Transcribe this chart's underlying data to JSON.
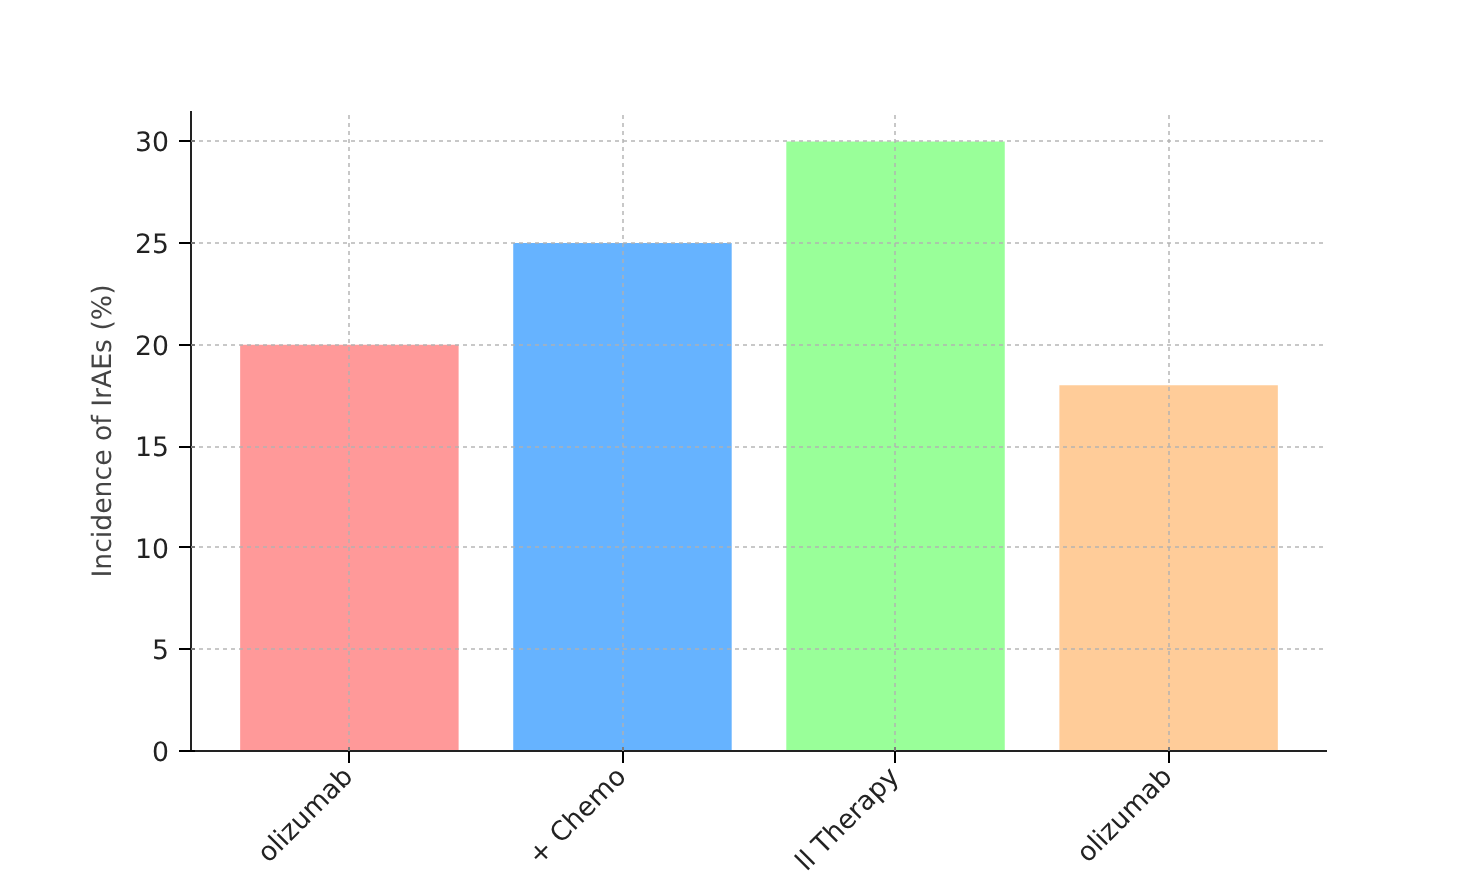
{
  "chart_data": {
    "type": "bar",
    "ylabel": "Incidence of IrAEs (%)",
    "categories": [
      "olizumab",
      "+ Chemo",
      "ll Therapy",
      "olizumab"
    ],
    "values": [
      20,
      25,
      30,
      18
    ],
    "colors": [
      "#ff9999",
      "#66b3ff",
      "#99ff99",
      "#ffcc99"
    ],
    "ylim": [
      0,
      31.5
    ],
    "yticks": [
      0,
      5,
      10,
      15,
      20,
      25,
      30
    ],
    "grid": true
  }
}
